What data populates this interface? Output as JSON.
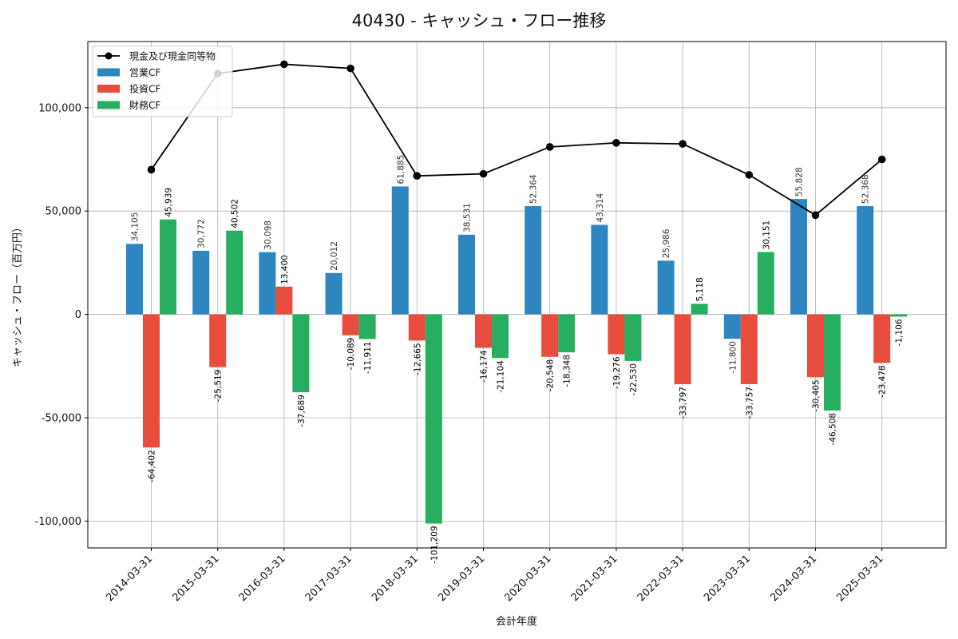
{
  "chart_data": {
    "type": "bar",
    "title": "40430 - キャッシュ・フロー推移",
    "xlabel": "会計年度",
    "ylabel": "キャッシュ・フロー（百万円）",
    "ylim": [
      -113000,
      132000
    ],
    "yticks": [
      -100000,
      -50000,
      0,
      50000,
      100000
    ],
    "ytick_labels": [
      "-100,000",
      "-50,000",
      "0",
      "50,000",
      "100,000"
    ],
    "categories": [
      "2014-03-31",
      "2015-03-31",
      "2016-03-31",
      "2017-03-31",
      "2018-03-31",
      "2019-03-31",
      "2020-03-31",
      "2021-03-31",
      "2022-03-31",
      "2023-03-31",
      "2024-03-31",
      "2025-03-31"
    ],
    "series": [
      {
        "name": "営業CF",
        "kind": "bar",
        "color": "#2e86c1",
        "values": [
          34105,
          30772,
          30098,
          20012,
          61885,
          38531,
          52364,
          43314,
          25986,
          -11800,
          55828,
          52368
        ],
        "labels": [
          "34,105",
          "30,772",
          "30,098",
          "20,012",
          "61,885",
          "38,531",
          "52,364",
          "43,314",
          "25,986",
          "-11,800",
          "55,828",
          "52,368"
        ]
      },
      {
        "name": "投資CF",
        "kind": "bar",
        "color": "#e74c3c",
        "values": [
          -64402,
          -25519,
          13400,
          -10089,
          -12665,
          -16174,
          -20548,
          -19276,
          -33797,
          -33757,
          -30405,
          -23478
        ],
        "labels": [
          "-64,402",
          "-25,519",
          "13,400",
          "-10,089",
          "-12,665",
          "-16,174",
          "-20,548",
          "-19,276",
          "-33,797",
          "-33,757",
          "-30,405",
          "-23,478"
        ]
      },
      {
        "name": "財務CF",
        "kind": "bar",
        "color": "#27ae60",
        "values": [
          45939,
          40502,
          -37689,
          -11911,
          -101209,
          -21104,
          -18348,
          -22530,
          5118,
          30151,
          -46508,
          -1106
        ],
        "labels": [
          "45,939",
          "40,502",
          "-37,689",
          "-11,911",
          "-101,209",
          "-21,104",
          "-18,348",
          "-22,530",
          "5,118",
          "30,151",
          "-46,508",
          "-1,106"
        ]
      },
      {
        "name": "現金及び現金同等物",
        "kind": "line",
        "color": "#000000",
        "values": [
          70000,
          116500,
          121000,
          119000,
          67000,
          68000,
          81000,
          83000,
          82500,
          67500,
          48000,
          75000
        ]
      }
    ],
    "legend_position": "top-left",
    "grid": true
  }
}
